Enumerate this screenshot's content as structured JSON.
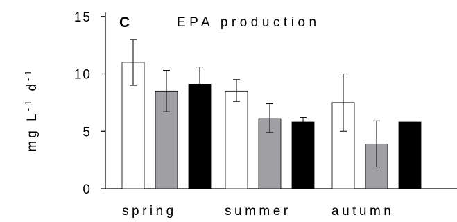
{
  "chart_data": {
    "type": "bar",
    "panel_letter": "C",
    "title": "EPA production",
    "ylabel_parts": [
      "mg L",
      "-1",
      " d",
      "-1"
    ],
    "categories": [
      "spring",
      "summer",
      "autumn"
    ],
    "yticks": [
      "0",
      "5",
      "10",
      "15"
    ],
    "ylim": [
      0,
      16
    ],
    "series": [
      {
        "color": "#ffffff",
        "values": [
          11.0,
          8.5,
          7.5
        ],
        "err_low": [
          9.0,
          7.6,
          5.0
        ],
        "err_high": [
          13.0,
          9.5,
          10.0
        ]
      },
      {
        "color": "#a0a0a4",
        "values": [
          8.5,
          6.1,
          3.9
        ],
        "err_low": [
          6.7,
          4.9,
          1.9
        ],
        "err_high": [
          10.3,
          7.4,
          5.9
        ]
      },
      {
        "color": "#000000",
        "values": [
          9.1,
          5.8,
          5.8
        ],
        "err_low": [
          7.6,
          5.4,
          5.8
        ],
        "err_high": [
          10.6,
          6.2,
          5.8
        ]
      }
    ],
    "legend": "none",
    "grid": false
  }
}
